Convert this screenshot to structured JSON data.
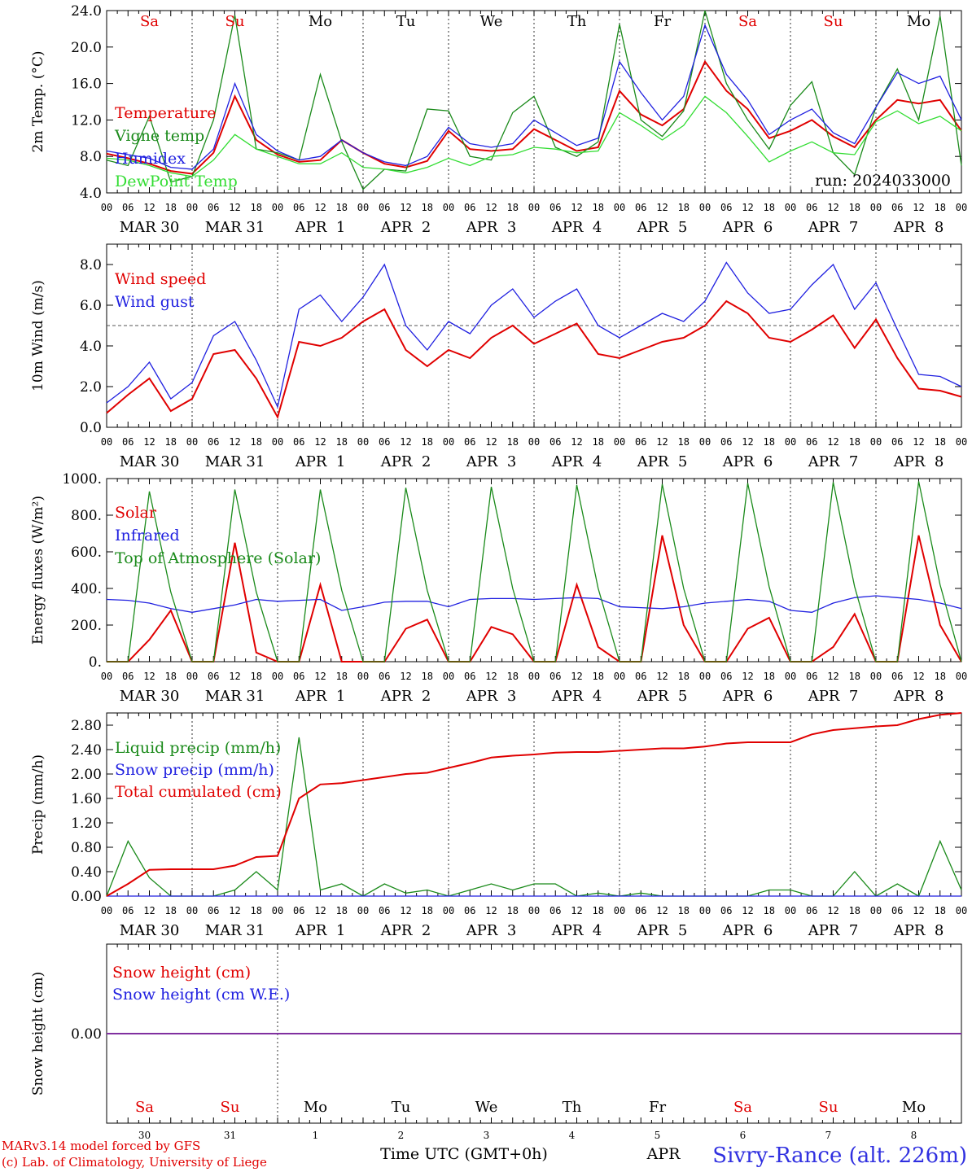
{
  "run_label": "run: 2024033000",
  "footer": {
    "model": "MARv3.14 model forced by GFS",
    "lab": "(c) Lab. of Climatology, University of Liege",
    "xtitle": "Time UTC (GMT+0h)",
    "month_label": "APR",
    "station": "Sivry-Rance (alt. 226m)"
  },
  "days": [
    {
      "short": "Sa",
      "date": "MAR 30",
      "num": "30",
      "weekend": true
    },
    {
      "short": "Su",
      "date": "MAR 31",
      "num": "31",
      "weekend": true
    },
    {
      "short": "Mo",
      "date": "APR  1",
      "num": "1",
      "weekend": false
    },
    {
      "short": "Tu",
      "date": "APR  2",
      "num": "2",
      "weekend": false
    },
    {
      "short": "We",
      "date": "APR  3",
      "num": "3",
      "weekend": false
    },
    {
      "short": "Th",
      "date": "APR  4",
      "num": "4",
      "weekend": false
    },
    {
      "short": "Fr",
      "date": "APR  5",
      "num": "5",
      "weekend": false
    },
    {
      "short": "Sa",
      "date": "APR  6",
      "num": "6",
      "weekend": true
    },
    {
      "short": "Su",
      "date": "APR  7",
      "num": "7",
      "weekend": true
    },
    {
      "short": "Mo",
      "date": "APR  8",
      "num": "8",
      "weekend": false
    }
  ],
  "hour_ticks": [
    "00",
    "06",
    "12",
    "18"
  ],
  "colors": {
    "red": "#e00000",
    "green": "#1a8a1a",
    "blue": "#2020e0",
    "lightgreen": "#33dd33",
    "purple": "#8030a0"
  },
  "chart_data": [
    {
      "type": "line",
      "ylabel": "2m Temp. (°C)",
      "ylim": [
        4,
        24
      ],
      "yticks": [
        "4.0",
        "8.0",
        "12.0",
        "16.0",
        "20.0",
        "24.0"
      ],
      "x_hours": [
        0,
        6,
        12,
        18,
        24,
        30,
        36,
        42,
        48,
        54,
        60,
        66,
        72,
        78,
        84,
        90,
        96,
        102,
        108,
        114,
        120,
        126,
        132,
        138,
        144,
        150,
        156,
        162,
        168,
        174,
        180,
        186,
        192,
        198,
        204,
        210,
        216,
        222,
        228,
        234,
        240
      ],
      "series": [
        {
          "name": "Temperature",
          "color": "red",
          "values": [
            8.3,
            7.8,
            7.2,
            6.4,
            6.1,
            8.4,
            14.6,
            9.8,
            8.2,
            7.4,
            7.6,
            9.8,
            8.4,
            7.2,
            6.8,
            7.5,
            10.8,
            8.8,
            8.6,
            8.8,
            11.0,
            9.8,
            8.6,
            9.0,
            15.2,
            12.6,
            11.4,
            13.2,
            18.4,
            15.2,
            13.2,
            10.0,
            10.8,
            12.0,
            10.2,
            9.0,
            12.0,
            14.2,
            13.8,
            14.2,
            10.8
          ]
        },
        {
          "name": "Vigne temp",
          "color": "green",
          "values": [
            7.6,
            7.0,
            12.4,
            5.2,
            5.8,
            12.0,
            23.5,
            8.8,
            8.4,
            7.6,
            17.0,
            9.6,
            4.4,
            6.6,
            6.4,
            13.2,
            13.0,
            8.0,
            7.6,
            12.8,
            14.6,
            9.0,
            8.0,
            9.6,
            22.5,
            12.0,
            10.2,
            13.0,
            24.0,
            16.0,
            12.0,
            8.8,
            13.6,
            16.2,
            8.4,
            6.0,
            13.4,
            17.6,
            12.0,
            23.4,
            7.0
          ]
        },
        {
          "name": "Humidex",
          "color": "blue",
          "values": [
            8.6,
            8.2,
            7.8,
            6.8,
            6.6,
            8.8,
            16.0,
            10.4,
            8.6,
            7.6,
            8.0,
            9.8,
            8.4,
            7.4,
            7.0,
            8.0,
            11.2,
            9.4,
            9.0,
            9.4,
            12.0,
            10.6,
            9.2,
            10.0,
            18.4,
            15.0,
            12.0,
            14.6,
            22.4,
            17.0,
            14.2,
            10.4,
            12.0,
            13.2,
            10.6,
            9.4,
            13.4,
            17.2,
            16.0,
            16.8,
            12.0
          ]
        },
        {
          "name": "DewPoint Temp",
          "color": "lightgreen",
          "values": [
            7.8,
            7.6,
            7.0,
            6.2,
            5.8,
            7.6,
            10.4,
            8.8,
            8.0,
            7.2,
            7.2,
            8.4,
            6.8,
            6.6,
            6.2,
            6.8,
            7.8,
            7.0,
            8.0,
            8.2,
            9.0,
            8.8,
            8.4,
            8.6,
            12.8,
            11.4,
            9.8,
            11.4,
            14.6,
            12.8,
            10.2,
            7.4,
            8.6,
            9.6,
            8.4,
            8.2,
            11.8,
            13.0,
            11.6,
            12.4,
            10.8
          ]
        }
      ]
    },
    {
      "type": "line",
      "ylabel": "10m Wind (m/s)",
      "ylim": [
        0,
        9
      ],
      "yticks": [
        "0.0",
        "2.0",
        "4.0",
        "6.0",
        "8.0"
      ],
      "ref_line": 5.0,
      "x_hours": [
        0,
        6,
        12,
        18,
        24,
        30,
        36,
        42,
        48,
        54,
        60,
        66,
        72,
        78,
        84,
        90,
        96,
        102,
        108,
        114,
        120,
        126,
        132,
        138,
        144,
        150,
        156,
        162,
        168,
        174,
        180,
        186,
        192,
        198,
        204,
        210,
        216,
        222,
        228,
        234,
        240
      ],
      "series": [
        {
          "name": "Wind speed",
          "color": "red",
          "values": [
            0.7,
            1.6,
            2.4,
            0.8,
            1.4,
            3.6,
            3.8,
            2.4,
            0.5,
            4.2,
            4.0,
            4.4,
            5.2,
            5.8,
            3.8,
            3.0,
            3.8,
            3.4,
            4.4,
            5.0,
            4.1,
            4.6,
            5.1,
            3.6,
            3.4,
            3.8,
            4.2,
            4.4,
            5.0,
            6.2,
            5.6,
            4.4,
            4.2,
            4.8,
            5.5,
            3.9,
            5.3,
            3.4,
            1.9,
            1.8,
            1.5
          ]
        },
        {
          "name": "Wind gust",
          "color": "blue",
          "values": [
            1.2,
            2.0,
            3.2,
            1.4,
            2.2,
            4.5,
            5.2,
            3.3,
            1.0,
            5.8,
            6.5,
            5.2,
            6.4,
            8.0,
            5.0,
            3.8,
            5.2,
            4.6,
            6.0,
            6.8,
            5.4,
            6.2,
            6.8,
            5.0,
            4.4,
            5.0,
            5.6,
            5.2,
            6.2,
            8.1,
            6.6,
            5.6,
            5.8,
            7.0,
            8.0,
            5.8,
            7.1,
            4.8,
            2.6,
            2.5,
            2.0
          ]
        }
      ]
    },
    {
      "type": "line",
      "ylabel": "Energy fluxes (W/m²)",
      "ylim": [
        0,
        1000
      ],
      "yticks": [
        "0.",
        "200.",
        "400.",
        "600.",
        "800.",
        "1000."
      ],
      "x_hours": [
        0,
        6,
        12,
        18,
        24,
        30,
        36,
        42,
        48,
        54,
        60,
        66,
        72,
        78,
        84,
        90,
        96,
        102,
        108,
        114,
        120,
        126,
        132,
        138,
        144,
        150,
        156,
        162,
        168,
        174,
        180,
        186,
        192,
        198,
        204,
        210,
        216,
        222,
        228,
        234,
        240
      ],
      "series": [
        {
          "name": "Solar",
          "color": "red",
          "values": [
            0,
            0,
            120,
            280,
            0,
            0,
            650,
            50,
            0,
            0,
            420,
            0,
            0,
            0,
            180,
            230,
            0,
            0,
            190,
            150,
            0,
            0,
            420,
            80,
            0,
            0,
            690,
            200,
            0,
            0,
            180,
            240,
            0,
            0,
            80,
            260,
            0,
            0,
            690,
            200,
            0
          ]
        },
        {
          "name": "Infrared",
          "color": "blue",
          "values": [
            340,
            335,
            320,
            290,
            270,
            290,
            310,
            340,
            330,
            335,
            340,
            280,
            300,
            325,
            330,
            330,
            300,
            340,
            345,
            345,
            340,
            345,
            350,
            345,
            300,
            295,
            290,
            300,
            320,
            330,
            340,
            330,
            280,
            270,
            320,
            350,
            360,
            350,
            340,
            320,
            290
          ]
        },
        {
          "name": "Top of Atmosphere (Solar)",
          "color": "green",
          "values": [
            0,
            0,
            930,
            380,
            0,
            0,
            940,
            380,
            0,
            0,
            940,
            390,
            0,
            0,
            950,
            390,
            0,
            0,
            955,
            400,
            0,
            0,
            965,
            400,
            0,
            0,
            970,
            400,
            0,
            0,
            975,
            410,
            0,
            0,
            980,
            410,
            0,
            0,
            985,
            420,
            0
          ]
        }
      ]
    },
    {
      "type": "line",
      "ylabel": "Precip (mm/h)",
      "ylim": [
        0,
        3.0
      ],
      "yticks": [
        "0.00",
        "0.40",
        "0.80",
        "1.20",
        "1.60",
        "2.00",
        "2.40",
        "2.80"
      ],
      "x_hours": [
        0,
        6,
        12,
        18,
        24,
        30,
        36,
        42,
        48,
        54,
        60,
        66,
        72,
        78,
        84,
        90,
        96,
        102,
        108,
        114,
        120,
        126,
        132,
        138,
        144,
        150,
        156,
        162,
        168,
        174,
        180,
        186,
        192,
        198,
        204,
        210,
        216,
        222,
        228,
        234,
        240
      ],
      "series": [
        {
          "name": "Liquid precip (mm/h)",
          "color": "green",
          "values": [
            0,
            0.9,
            0.3,
            0,
            0,
            0,
            0.1,
            0.4,
            0.1,
            2.6,
            0.1,
            0.2,
            0,
            0.2,
            0.05,
            0.1,
            0,
            0.1,
            0.2,
            0.1,
            0.2,
            0.2,
            0,
            0.05,
            0,
            0.05,
            0,
            0,
            0,
            0,
            0,
            0.1,
            0.1,
            0,
            0,
            0.4,
            0,
            0.2,
            0,
            0.9,
            0.1
          ]
        },
        {
          "name": "Snow precip (mm/h)",
          "color": "blue",
          "values": [
            0,
            0,
            0,
            0,
            0,
            0,
            0,
            0,
            0,
            0,
            0,
            0,
            0,
            0,
            0,
            0,
            0,
            0,
            0,
            0,
            0,
            0,
            0,
            0,
            0,
            0,
            0,
            0,
            0,
            0,
            0,
            0,
            0,
            0,
            0,
            0,
            0,
            0,
            0,
            0,
            0
          ]
        },
        {
          "name": "Total cumulated (cm)",
          "color": "red",
          "values": [
            0,
            0.2,
            0.43,
            0.44,
            0.44,
            0.44,
            0.5,
            0.64,
            0.66,
            1.6,
            1.83,
            1.85,
            1.9,
            1.95,
            2.0,
            2.02,
            2.1,
            2.18,
            2.27,
            2.3,
            2.32,
            2.35,
            2.36,
            2.36,
            2.38,
            2.4,
            2.42,
            2.42,
            2.45,
            2.5,
            2.52,
            2.52,
            2.52,
            2.65,
            2.72,
            2.75,
            2.78,
            2.8,
            2.9,
            2.97,
            3.0
          ]
        }
      ]
    },
    {
      "type": "line",
      "ylabel": "Snow height (cm)",
      "ylim": [
        -1,
        1
      ],
      "yticks": [
        "0.00"
      ],
      "x_hours": [
        0,
        240
      ],
      "series": [
        {
          "name": "Snow height (cm)",
          "color": "red",
          "values": [
            0,
            0
          ]
        },
        {
          "name": "Snow height (cm W.E.)",
          "color": "blue",
          "values": [
            0,
            0
          ]
        }
      ]
    }
  ]
}
